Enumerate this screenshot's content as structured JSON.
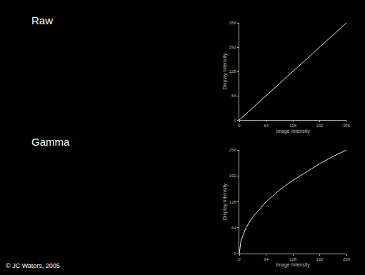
{
  "chart_data": [
    {
      "type": "line",
      "title": "Raw",
      "xlabel": "Image Intensity",
      "ylabel": "Display Intensity",
      "x": [
        0,
        256
      ],
      "values": [
        0,
        256
      ],
      "color": "#e8e8e8",
      "xlim": [
        0,
        256
      ],
      "ylim": [
        0,
        256
      ],
      "xticks": [
        0,
        64,
        128,
        192,
        256
      ],
      "yticks": [
        0,
        64,
        128,
        192,
        256
      ]
    },
    {
      "type": "line",
      "title": "Gamma",
      "xlabel": "Image Intensity",
      "ylabel": "Display Intensity",
      "x": [
        0,
        4,
        16,
        32,
        64,
        96,
        128,
        160,
        192,
        224,
        256
      ],
      "values": [
        0,
        32,
        64,
        90,
        128,
        157,
        181,
        202,
        222,
        240,
        256
      ],
      "color": "#e8e8e8",
      "xlim": [
        0,
        256
      ],
      "ylim": [
        0,
        256
      ],
      "xticks": [
        0,
        64,
        128,
        192,
        256
      ],
      "yticks": [
        0,
        64,
        128,
        192,
        256
      ]
    }
  ],
  "credit": "© JC Waters, 2005"
}
